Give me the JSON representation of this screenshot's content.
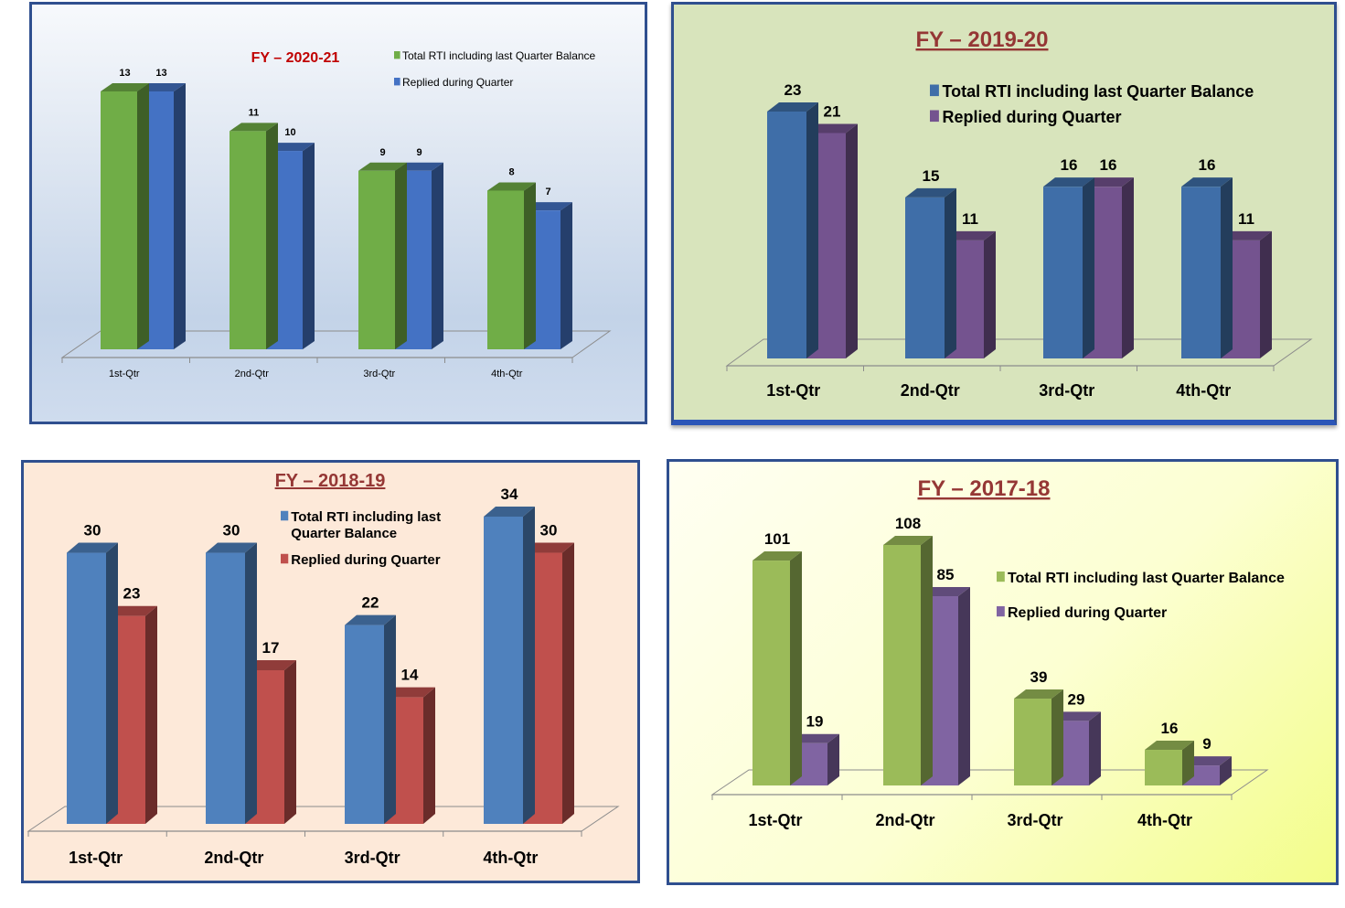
{
  "chart_data": [
    {
      "type": "bar",
      "title": "FY – 2020-21",
      "categories": [
        "1st-Qtr",
        "2nd-Qtr",
        "3rd-Qtr",
        "4th-Qtr"
      ],
      "series": [
        {
          "name": "Total RTI including last Quarter Balance",
          "values": [
            13,
            11,
            9,
            8
          ]
        },
        {
          "name": "Replied during Quarter",
          "values": [
            13,
            10,
            9,
            7
          ]
        }
      ],
      "colors": [
        "#70ad47",
        "#4472c4"
      ],
      "title_color": "#c00000",
      "ylim": [
        0,
        13
      ],
      "grid": false,
      "legend_position": "top-right"
    },
    {
      "type": "bar",
      "title": "FY – 2019-20",
      "categories": [
        "1st-Qtr",
        "2nd-Qtr",
        "3rd-Qtr",
        "4th-Qtr"
      ],
      "series": [
        {
          "name": "Total RTI including last Quarter Balance",
          "values": [
            23,
            15,
            16,
            16
          ]
        },
        {
          "name": "Replied during Quarter",
          "values": [
            21,
            11,
            16,
            11
          ]
        }
      ],
      "colors": [
        "#3f6ea8",
        "#74538f"
      ],
      "title_color": "#953735",
      "ylim": [
        0,
        23
      ],
      "grid": false,
      "legend_position": "top-right"
    },
    {
      "type": "bar",
      "title": "FY – 2018-19",
      "categories": [
        "1st-Qtr",
        "2nd-Qtr",
        "3rd-Qtr",
        "4th-Qtr"
      ],
      "series": [
        {
          "name": "Total RTI including last Quarter Balance",
          "values": [
            30,
            30,
            22,
            34
          ]
        },
        {
          "name": "Replied during Quarter",
          "values": [
            23,
            17,
            14,
            30
          ]
        }
      ],
      "colors": [
        "#4f81bd",
        "#c0504d"
      ],
      "title_color": "#953735",
      "ylim": [
        0,
        34
      ],
      "grid": false,
      "legend_position": "top-right"
    },
    {
      "type": "bar",
      "title": "FY – 2017-18",
      "categories": [
        "1st-Qtr",
        "2nd-Qtr",
        "3rd-Qtr",
        "4th-Qtr"
      ],
      "series": [
        {
          "name": "Total RTI including last Quarter Balance",
          "values": [
            101,
            108,
            39,
            16
          ]
        },
        {
          "name": "Replied during Quarter",
          "values": [
            19,
            85,
            29,
            9
          ]
        }
      ],
      "colors": [
        "#9bbb59",
        "#8064a2"
      ],
      "title_color": "#953735",
      "ylim": [
        0,
        108
      ],
      "grid": false,
      "legend_position": "right"
    }
  ]
}
